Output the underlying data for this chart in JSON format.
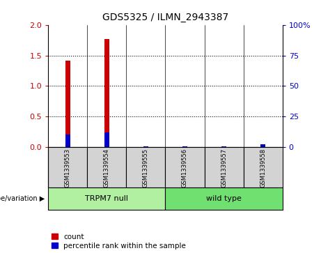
{
  "title": "GDS5325 / ILMN_2943387",
  "samples": [
    "GSM1339553",
    "GSM1339554",
    "GSM1339555",
    "GSM1339556",
    "GSM1339557",
    "GSM1339558"
  ],
  "count_values": [
    1.42,
    1.77,
    0.0,
    0.0,
    0.0,
    0.0
  ],
  "percentile_values": [
    10,
    12,
    0.5,
    0.5,
    0.5,
    2
  ],
  "ylim_left": [
    0,
    2
  ],
  "ylim_right": [
    0,
    100
  ],
  "yticks_left": [
    0,
    0.5,
    1.0,
    1.5,
    2.0
  ],
  "yticks_right": [
    0,
    25,
    50,
    75,
    100
  ],
  "yticklabels_right": [
    "0",
    "25",
    "50",
    "75",
    "100%"
  ],
  "red_color": "#cc0000",
  "blue_color": "#0000cc",
  "bar_width": 0.12,
  "group_label": "genotype/variation",
  "legend_count": "count",
  "legend_percentile": "percentile rank within the sample",
  "background_color": "#ffffff",
  "plot_bg_color": "#ffffff",
  "sample_box_color": "#d3d3d3",
  "trpm7_color": "#b0f0a0",
  "wt_color": "#70e070",
  "grid_ticks": [
    0.5,
    1.0,
    1.5
  ],
  "group_separator": 2.5,
  "n_samples": 6
}
